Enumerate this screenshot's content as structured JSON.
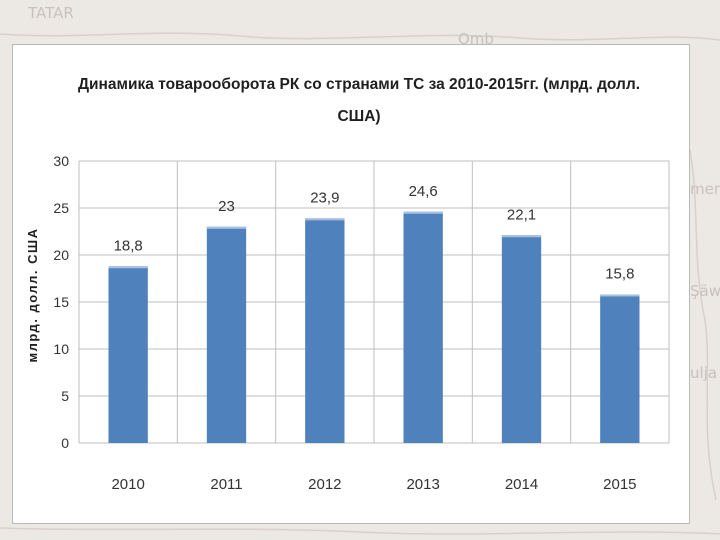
{
  "background": {
    "labels": [
      "TATAR",
      "Omb",
      "men",
      "Şäw",
      "ulja"
    ]
  },
  "chart_data": {
    "type": "bar",
    "title": "Динамика товарооборота РК со странами ТС за 2010-2015гг. (млрд. долл. США)",
    "title_lines": [
      "Динамика товарооборота РК со странами ТС за 2010-2015гг. (млрд. долл.",
      "США)"
    ],
    "ylabel": "млрд. долл. США",
    "xlabel": "",
    "categories": [
      "2010",
      "2011",
      "2012",
      "2013",
      "2014",
      "2015"
    ],
    "values": [
      18.8,
      23,
      23.9,
      24.6,
      22.1,
      15.8
    ],
    "data_labels": [
      "18,8",
      "23",
      "23,9",
      "24,6",
      "22,1",
      "15,8"
    ],
    "ylim": [
      0,
      30
    ],
    "yticks": [
      0,
      5,
      10,
      15,
      20,
      25,
      30
    ],
    "grid": true,
    "bar_color": "#4f81bd",
    "legend": "none"
  }
}
